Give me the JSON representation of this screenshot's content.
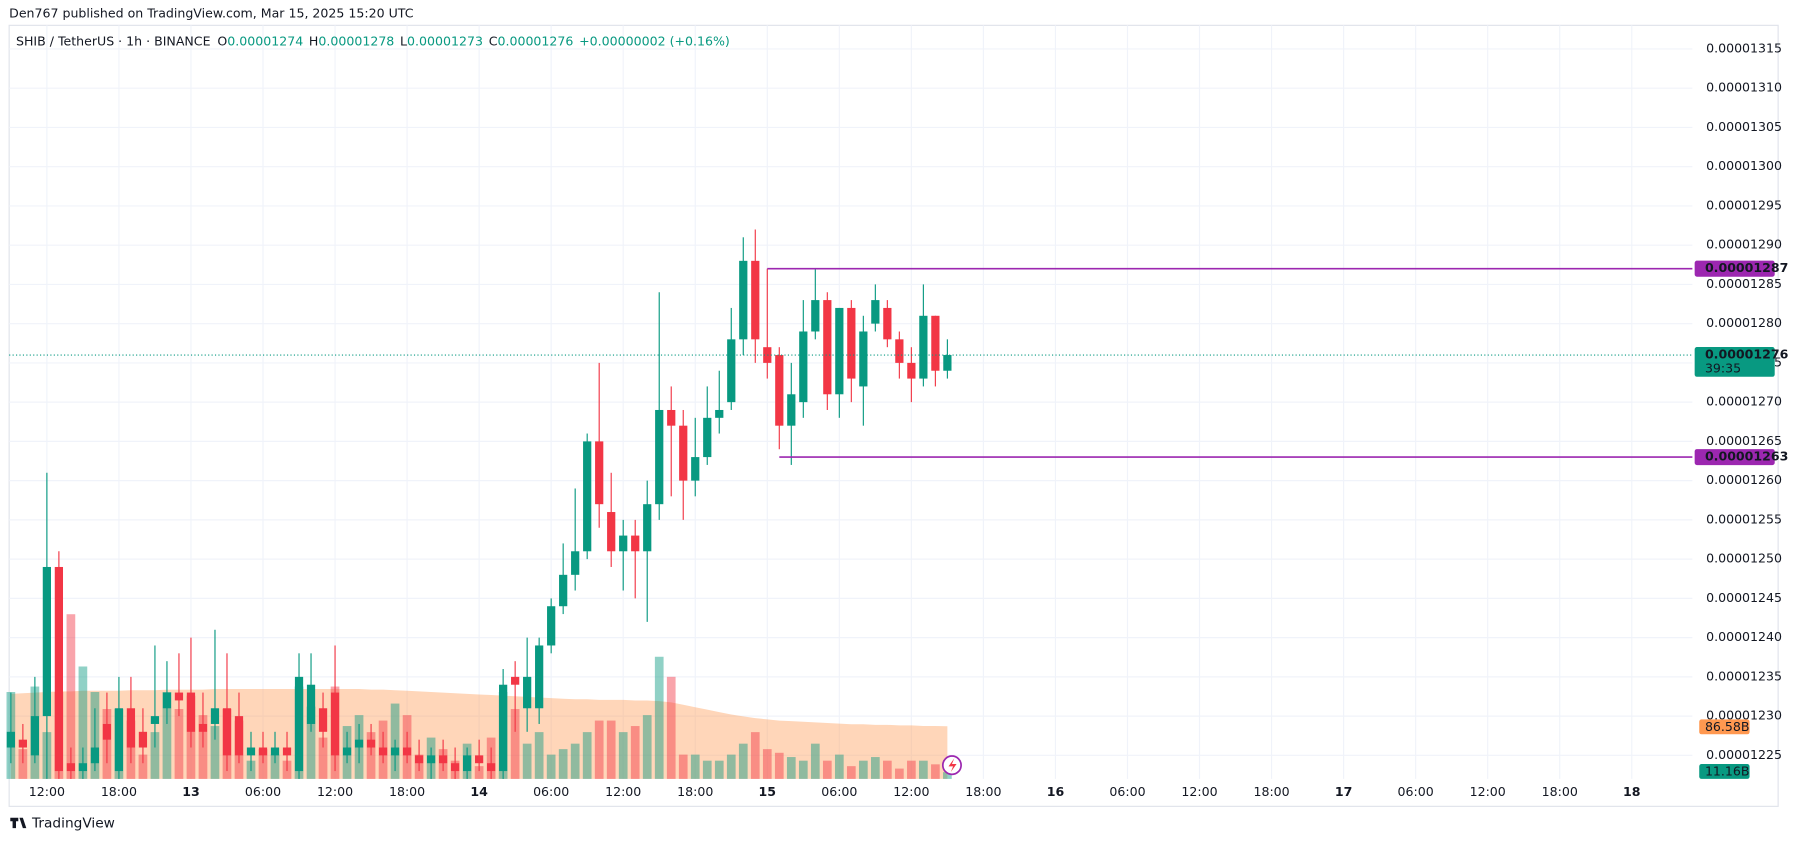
{
  "chart_data": {
    "type": "candlestick",
    "publisher": "Den767 published on TradingView.com, Mar 15, 2025 15:20 UTC",
    "title": "SHIB / TetherUS · 1h · BINANCE",
    "ohlc_letters": [
      "O",
      "H",
      "L",
      "C"
    ],
    "change_label": "+0.00000002 (+0.16%)",
    "logo": "TradingView",
    "up_color": "#089981",
    "down_color": "#f23645",
    "grid": true,
    "open": [
      1.226e-05,
      1.227e-05,
      1.225e-05,
      1.23e-05,
      1.249e-05,
      1.224e-05,
      1.223e-05,
      1.224e-05,
      1.229e-05,
      1.223e-05,
      1.231e-05,
      1.228e-05,
      1.229e-05,
      1.231e-05,
      1.233e-05,
      1.233e-05,
      1.229e-05,
      1.229e-05,
      1.231e-05,
      1.23e-05,
      1.225e-05,
      1.226e-05,
      1.225e-05,
      1.226e-05,
      1.223e-05,
      1.229e-05,
      1.231e-05,
      1.233e-05,
      1.225e-05,
      1.226e-05,
      1.227e-05,
      1.226e-05,
      1.225e-05,
      1.226e-05,
      1.225e-05,
      1.224e-05,
      1.225e-05,
      1.224e-05,
      1.223e-05,
      1.225e-05,
      1.224e-05,
      1.223e-05,
      1.235e-05,
      1.231e-05,
      1.231e-05,
      1.239e-05,
      1.244e-05,
      1.248e-05,
      1.251e-05,
      1.265e-05,
      1.256e-05,
      1.251e-05,
      1.253e-05,
      1.251e-05,
      1.257e-05,
      1.269e-05,
      1.267e-05,
      1.26e-05,
      1.263e-05,
      1.268e-05,
      1.27e-05,
      1.278e-05,
      1.288e-05,
      1.277e-05,
      1.276e-05,
      1.267e-05,
      1.27e-05,
      1.279e-05,
      1.283e-05,
      1.271e-05,
      1.282e-05,
      1.272e-05,
      1.28e-05,
      1.282e-05,
      1.278e-05,
      1.275e-05,
      1.273e-05,
      1.281e-05,
      1.274e-05
    ],
    "high": [
      1.233e-05,
      1.229e-05,
      1.235e-05,
      1.261e-05,
      1.251e-05,
      1.226e-05,
      1.226e-05,
      1.231e-05,
      1.233e-05,
      1.235e-05,
      1.235e-05,
      1.231e-05,
      1.239e-05,
      1.237e-05,
      1.238e-05,
      1.24e-05,
      1.233e-05,
      1.241e-05,
      1.238e-05,
      1.233e-05,
      1.228e-05,
      1.228e-05,
      1.228e-05,
      1.228e-05,
      1.238e-05,
      1.238e-05,
      1.233e-05,
      1.239e-05,
      1.228e-05,
      1.229e-05,
      1.229e-05,
      1.228e-05,
      1.227e-05,
      1.228e-05,
      1.227e-05,
      1.226e-05,
      1.227e-05,
      1.226e-05,
      1.226e-05,
      1.227e-05,
      1.226e-05,
      1.236e-05,
      1.237e-05,
      1.24e-05,
      1.24e-05,
      1.245e-05,
      1.252e-05,
      1.259e-05,
      1.266e-05,
      1.275e-05,
      1.261e-05,
      1.255e-05,
      1.255e-05,
      1.26e-05,
      1.284e-05,
      1.272e-05,
      1.269e-05,
      1.268e-05,
      1.272e-05,
      1.274e-05,
      1.282e-05,
      1.291e-05,
      1.292e-05,
      1.287e-05,
      1.277e-05,
      1.275e-05,
      1.283e-05,
      1.287e-05,
      1.284e-05,
      1.282e-05,
      1.283e-05,
      1.281e-05,
      1.285e-05,
      1.283e-05,
      1.279e-05,
      1.277e-05,
      1.285e-05,
      1.281e-05,
      1.278e-05
    ],
    "low": [
      1.224e-05,
      1.224e-05,
      1.224e-05,
      1.222e-05,
      1.222e-05,
      1.222e-05,
      1.222e-05,
      1.223e-05,
      1.224e-05,
      1.222e-05,
      1.224e-05,
      1.224e-05,
      1.226e-05,
      1.229e-05,
      1.23e-05,
      1.226e-05,
      1.226e-05,
      1.227e-05,
      1.223e-05,
      1.224e-05,
      1.223e-05,
      1.224e-05,
      1.224e-05,
      1.223e-05,
      1.222e-05,
      1.228e-05,
      1.226e-05,
      1.223e-05,
      1.224e-05,
      1.224e-05,
      1.225e-05,
      1.224e-05,
      1.223e-05,
      1.224e-05,
      1.223e-05,
      1.222e-05,
      1.223e-05,
      1.222e-05,
      1.222e-05,
      1.223e-05,
      1.222e-05,
      1.222e-05,
      1.228e-05,
      1.228e-05,
      1.229e-05,
      1.238e-05,
      1.243e-05,
      1.246e-05,
      1.25e-05,
      1.254e-05,
      1.249e-05,
      1.246e-05,
      1.245e-05,
      1.242e-05,
      1.255e-05,
      1.258e-05,
      1.255e-05,
      1.258e-05,
      1.262e-05,
      1.266e-05,
      1.269e-05,
      1.276e-05,
      1.275e-05,
      1.273e-05,
      1.264e-05,
      1.262e-05,
      1.268e-05,
      1.278e-05,
      1.269e-05,
      1.268e-05,
      1.27e-05,
      1.267e-05,
      1.279e-05,
      1.277e-05,
      1.273e-05,
      1.27e-05,
      1.272e-05,
      1.272e-05,
      1.273e-05
    ],
    "close": [
      1.228e-05,
      1.226e-05,
      1.23e-05,
      1.249e-05,
      1.223e-05,
      1.223e-05,
      1.224e-05,
      1.226e-05,
      1.227e-05,
      1.231e-05,
      1.226e-05,
      1.226e-05,
      1.23e-05,
      1.233e-05,
      1.232e-05,
      1.228e-05,
      1.228e-05,
      1.231e-05,
      1.225e-05,
      1.225e-05,
      1.226e-05,
      1.225e-05,
      1.226e-05,
      1.225e-05,
      1.235e-05,
      1.234e-05,
      1.228e-05,
      1.225e-05,
      1.226e-05,
      1.227e-05,
      1.226e-05,
      1.225e-05,
      1.226e-05,
      1.225e-05,
      1.224e-05,
      1.225e-05,
      1.224e-05,
      1.223e-05,
      1.225e-05,
      1.224e-05,
      1.223e-05,
      1.234e-05,
      1.234e-05,
      1.235e-05,
      1.239e-05,
      1.244e-05,
      1.248e-05,
      1.251e-05,
      1.265e-05,
      1.257e-05,
      1.251e-05,
      1.253e-05,
      1.251e-05,
      1.257e-05,
      1.269e-05,
      1.267e-05,
      1.26e-05,
      1.263e-05,
      1.268e-05,
      1.269e-05,
      1.278e-05,
      1.288e-05,
      1.278e-05,
      1.275e-05,
      1.267e-05,
      1.271e-05,
      1.279e-05,
      1.283e-05,
      1.271e-05,
      1.282e-05,
      1.273e-05,
      1.279e-05,
      1.283e-05,
      1.278e-05,
      1.275e-05,
      1.273e-05,
      1.281e-05,
      1.274e-05,
      1.276e-05
    ],
    "ylim": [
      1.222e-05,
      1.318e-05
    ],
    "yticks": [
      1.225e-05,
      {
        "value": 1.23e-05,
        "label": "0.00001230"
      },
      1.235e-05,
      {
        "value": 1.24e-05,
        "label": "0.00001240"
      },
      1.245e-05,
      {
        "value": 1.25e-05,
        "label": "0.00001250"
      },
      1.255e-05,
      {
        "value": 1.26e-05,
        "label": "0.00001260"
      },
      1.265e-05,
      {
        "value": 1.27e-05,
        "label": "0.00001270"
      },
      1.275e-05,
      {
        "value": 1.28e-05,
        "label": "0.00001280"
      },
      1.285e-05,
      {
        "value": 1.29e-05,
        "label": "0.00001290"
      },
      1.295e-05,
      {
        "value": 1.3e-05,
        "label": "0.00001300"
      },
      1.305e-05,
      {
        "value": 1.31e-05,
        "label": "0.00001310"
      },
      1.315e-05
    ],
    "xlim": [
      0,
      140
    ],
    "xticks": [
      {
        "value": 3,
        "label": "12:00"
      },
      {
        "value": 9,
        "label": "18:00"
      },
      {
        "value": 15,
        "label": "13"
      },
      {
        "value": 21,
        "label": "06:00"
      },
      {
        "value": 27,
        "label": "12:00"
      },
      {
        "value": 33,
        "label": "18:00"
      },
      {
        "value": 39,
        "label": "14"
      },
      {
        "value": 45,
        "label": "06:00"
      },
      {
        "value": 51,
        "label": "12:00"
      },
      {
        "value": 57,
        "label": "18:00"
      },
      {
        "value": 63,
        "label": "15"
      },
      {
        "value": 69,
        "label": "06:00"
      },
      {
        "value": 75,
        "label": "12:00"
      },
      {
        "value": 81,
        "label": "18:00"
      },
      {
        "value": 87,
        "label": "16"
      },
      {
        "value": 93,
        "label": "06:00"
      },
      {
        "value": 99,
        "label": "12:00"
      },
      {
        "value": 105,
        "label": "18:00"
      },
      {
        "value": 111,
        "label": "17"
      },
      {
        "value": 117,
        "label": "06:00"
      },
      {
        "value": 123,
        "label": "12:00"
      },
      {
        "value": 129,
        "label": "18:00"
      },
      {
        "value": 135,
        "label": "18"
      }
    ],
    "horizontal_lines": [
      {
        "value": 1.287e-05,
        "start": 63,
        "color": "#9c27b0"
      },
      {
        "value": 1.263e-05,
        "start": 64,
        "color": "#9c27b0"
      }
    ],
    "countdown": "39:35",
    "volume": {
      "ylim": [
        0,
        1240
      ],
      "last_value_label": "11.16B",
      "values": [
        143,
        49,
        152,
        77,
        143,
        271,
        185,
        143,
        115,
        115,
        96,
        40,
        77,
        143,
        115,
        137,
        105,
        87,
        115,
        96,
        30,
        49,
        40,
        30,
        152,
        119,
        68,
        152,
        87,
        105,
        77,
        96,
        124,
        105,
        40,
        68,
        49,
        30,
        58,
        21,
        68,
        143,
        115,
        58,
        77,
        40,
        49,
        58,
        77,
        96,
        96,
        77,
        87,
        105,
        201,
        168,
        40,
        40,
        30,
        30,
        40,
        58,
        77,
        49,
        43,
        36,
        30,
        58,
        30,
        40,
        21,
        30,
        36,
        30,
        17,
        30,
        30,
        24,
        11.16
      ]
    },
    "volume_ma": {
      "color": "#ff9850",
      "last_value_label": "86.58B",
      "values": [
        140,
        141,
        142,
        143,
        144,
        144,
        145,
        145,
        145,
        145,
        146,
        146,
        146,
        147,
        147,
        147,
        147,
        148,
        148,
        148,
        148,
        148,
        148,
        148,
        148,
        148,
        148,
        148,
        148,
        148,
        147,
        147,
        146,
        145,
        144,
        143,
        142,
        141,
        140,
        139,
        138,
        137,
        136,
        135,
        134,
        133,
        132,
        131,
        131,
        130,
        130,
        130,
        129,
        129,
        128,
        126,
        122,
        118,
        114,
        110,
        106,
        103,
        100,
        98,
        96,
        95,
        94,
        93,
        92,
        91,
        90,
        90,
        89,
        89,
        88,
        88,
        87,
        87,
        86.58
      ]
    }
  }
}
